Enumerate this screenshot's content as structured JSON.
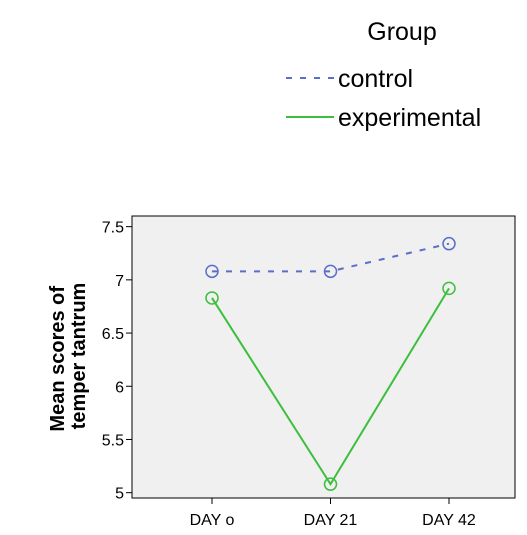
{
  "chart_data": {
    "type": "line",
    "title": "",
    "xlabel": "",
    "ylabel_lines": [
      "Mean scores of",
      "temper tantrum"
    ],
    "categories": [
      "DAY o",
      "DAY 21",
      "DAY 42"
    ],
    "ylim": [
      4.95,
      7.6
    ],
    "yticks": [
      5,
      5.5,
      6,
      6.5,
      7,
      7.5
    ],
    "ytick_labels": [
      "5",
      "5.5",
      "6",
      "6.5",
      "7",
      "7.5"
    ],
    "grid": false,
    "plot_background": "#f0f0f0",
    "legend": {
      "title": "Group",
      "position": "top-right"
    },
    "series": [
      {
        "name": "control",
        "values": [
          7.08,
          7.08,
          7.34
        ],
        "color": "#5b6ec9",
        "line_style": "dashed",
        "marker": "circle-open"
      },
      {
        "name": "experimental",
        "values": [
          6.83,
          5.08,
          6.92
        ],
        "color": "#3cbf3c",
        "line_style": "solid",
        "marker": "circle-open"
      }
    ]
  }
}
